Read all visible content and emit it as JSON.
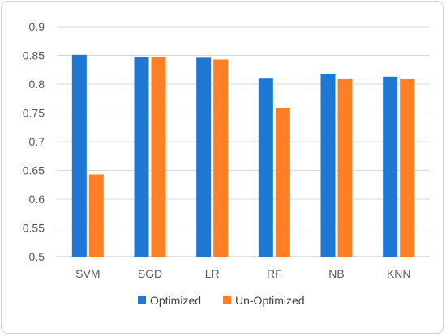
{
  "chart_data": {
    "type": "bar",
    "categories": [
      "SVM",
      "SGD",
      "LR",
      "RF",
      "NB",
      "KNN"
    ],
    "series": [
      {
        "name": "Optimized",
        "color": "#1f77d4",
        "values": [
          0.851,
          0.847,
          0.846,
          0.811,
          0.818,
          0.813
        ]
      },
      {
        "name": "Un-Optimized",
        "color": "#ff7f27",
        "values": [
          0.643,
          0.847,
          0.843,
          0.759,
          0.81,
          0.81
        ]
      }
    ],
    "yticks": [
      "0.5",
      "0.55",
      "0.6",
      "0.65",
      "0.7",
      "0.75",
      "0.8",
      "0.85",
      "0.9"
    ],
    "ylim": [
      0.5,
      0.9
    ],
    "grid": true,
    "legend_position": "bottom"
  }
}
